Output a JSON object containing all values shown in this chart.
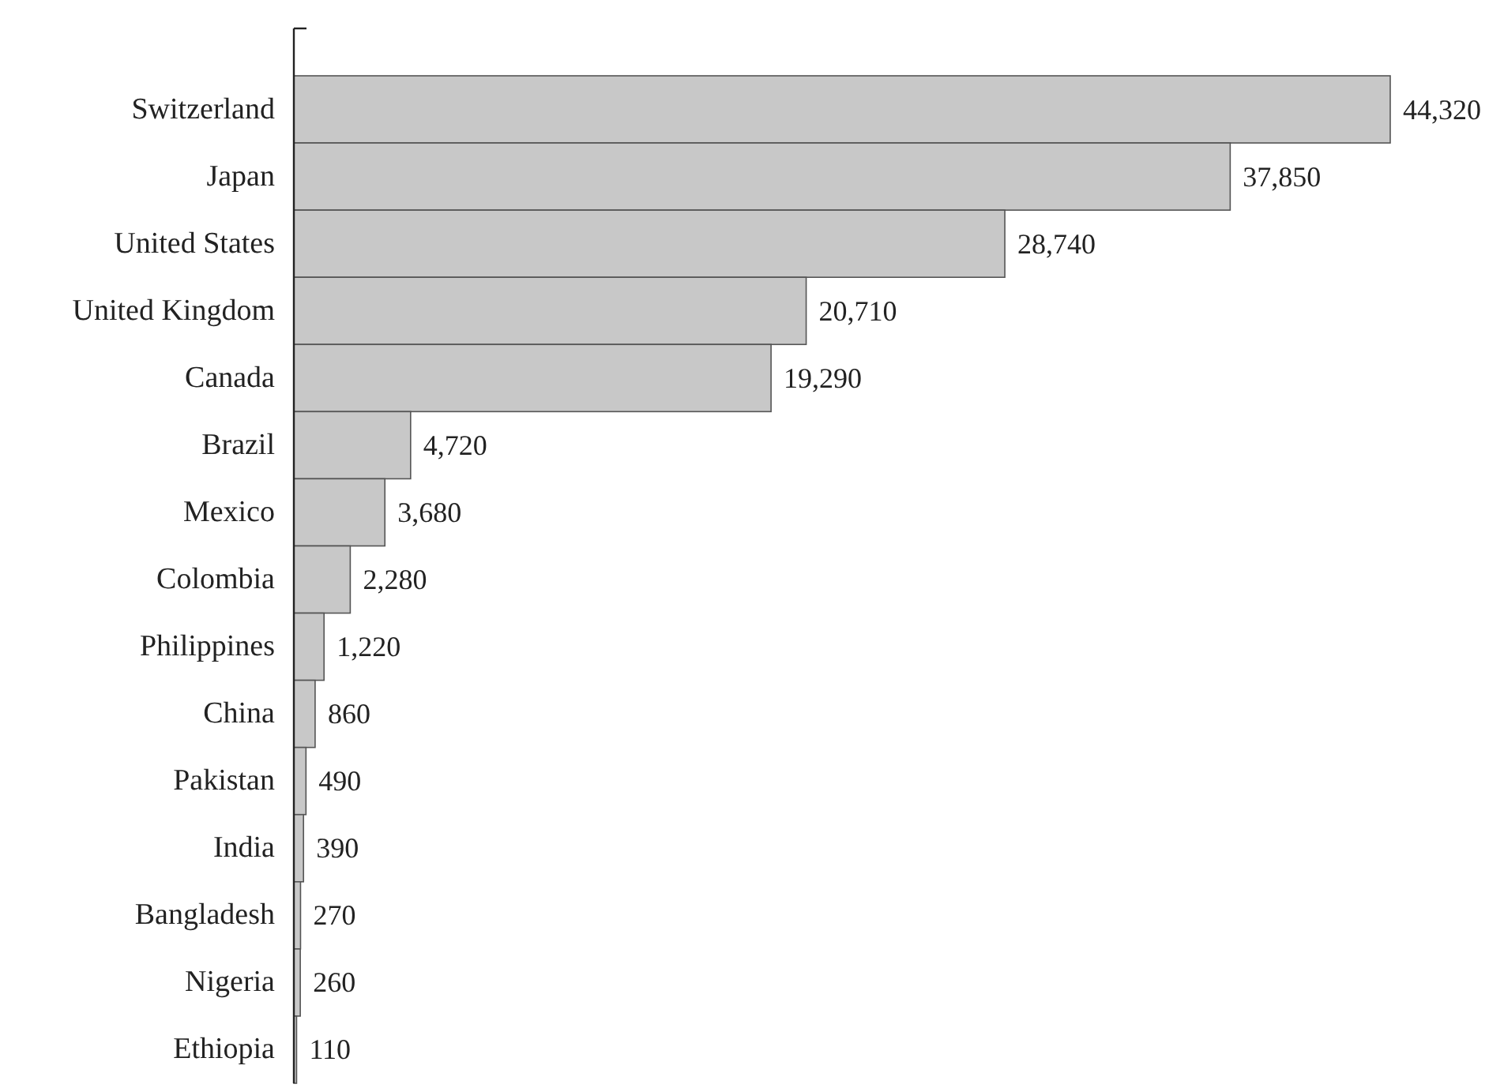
{
  "chart_data": {
    "type": "bar",
    "orientation": "horizontal",
    "categories": [
      "Switzerland",
      "Japan",
      "United States",
      "United Kingdom",
      "Canada",
      "Brazil",
      "Mexico",
      "Colombia",
      "Philippines",
      "China",
      "Pakistan",
      "India",
      "Bangladesh",
      "Nigeria",
      "Ethiopia"
    ],
    "values": [
      44320,
      37850,
      28740,
      20710,
      19290,
      4720,
      3680,
      2280,
      1220,
      860,
      490,
      390,
      270,
      260,
      110
    ],
    "value_labels": [
      "44,320",
      "37,850",
      "28,740",
      "20,710",
      "19,290",
      "4,720",
      "3,680",
      "2,280",
      "1,220",
      "860",
      "490",
      "390",
      "270",
      "260",
      "110"
    ],
    "color": "#c8c8c8"
  }
}
